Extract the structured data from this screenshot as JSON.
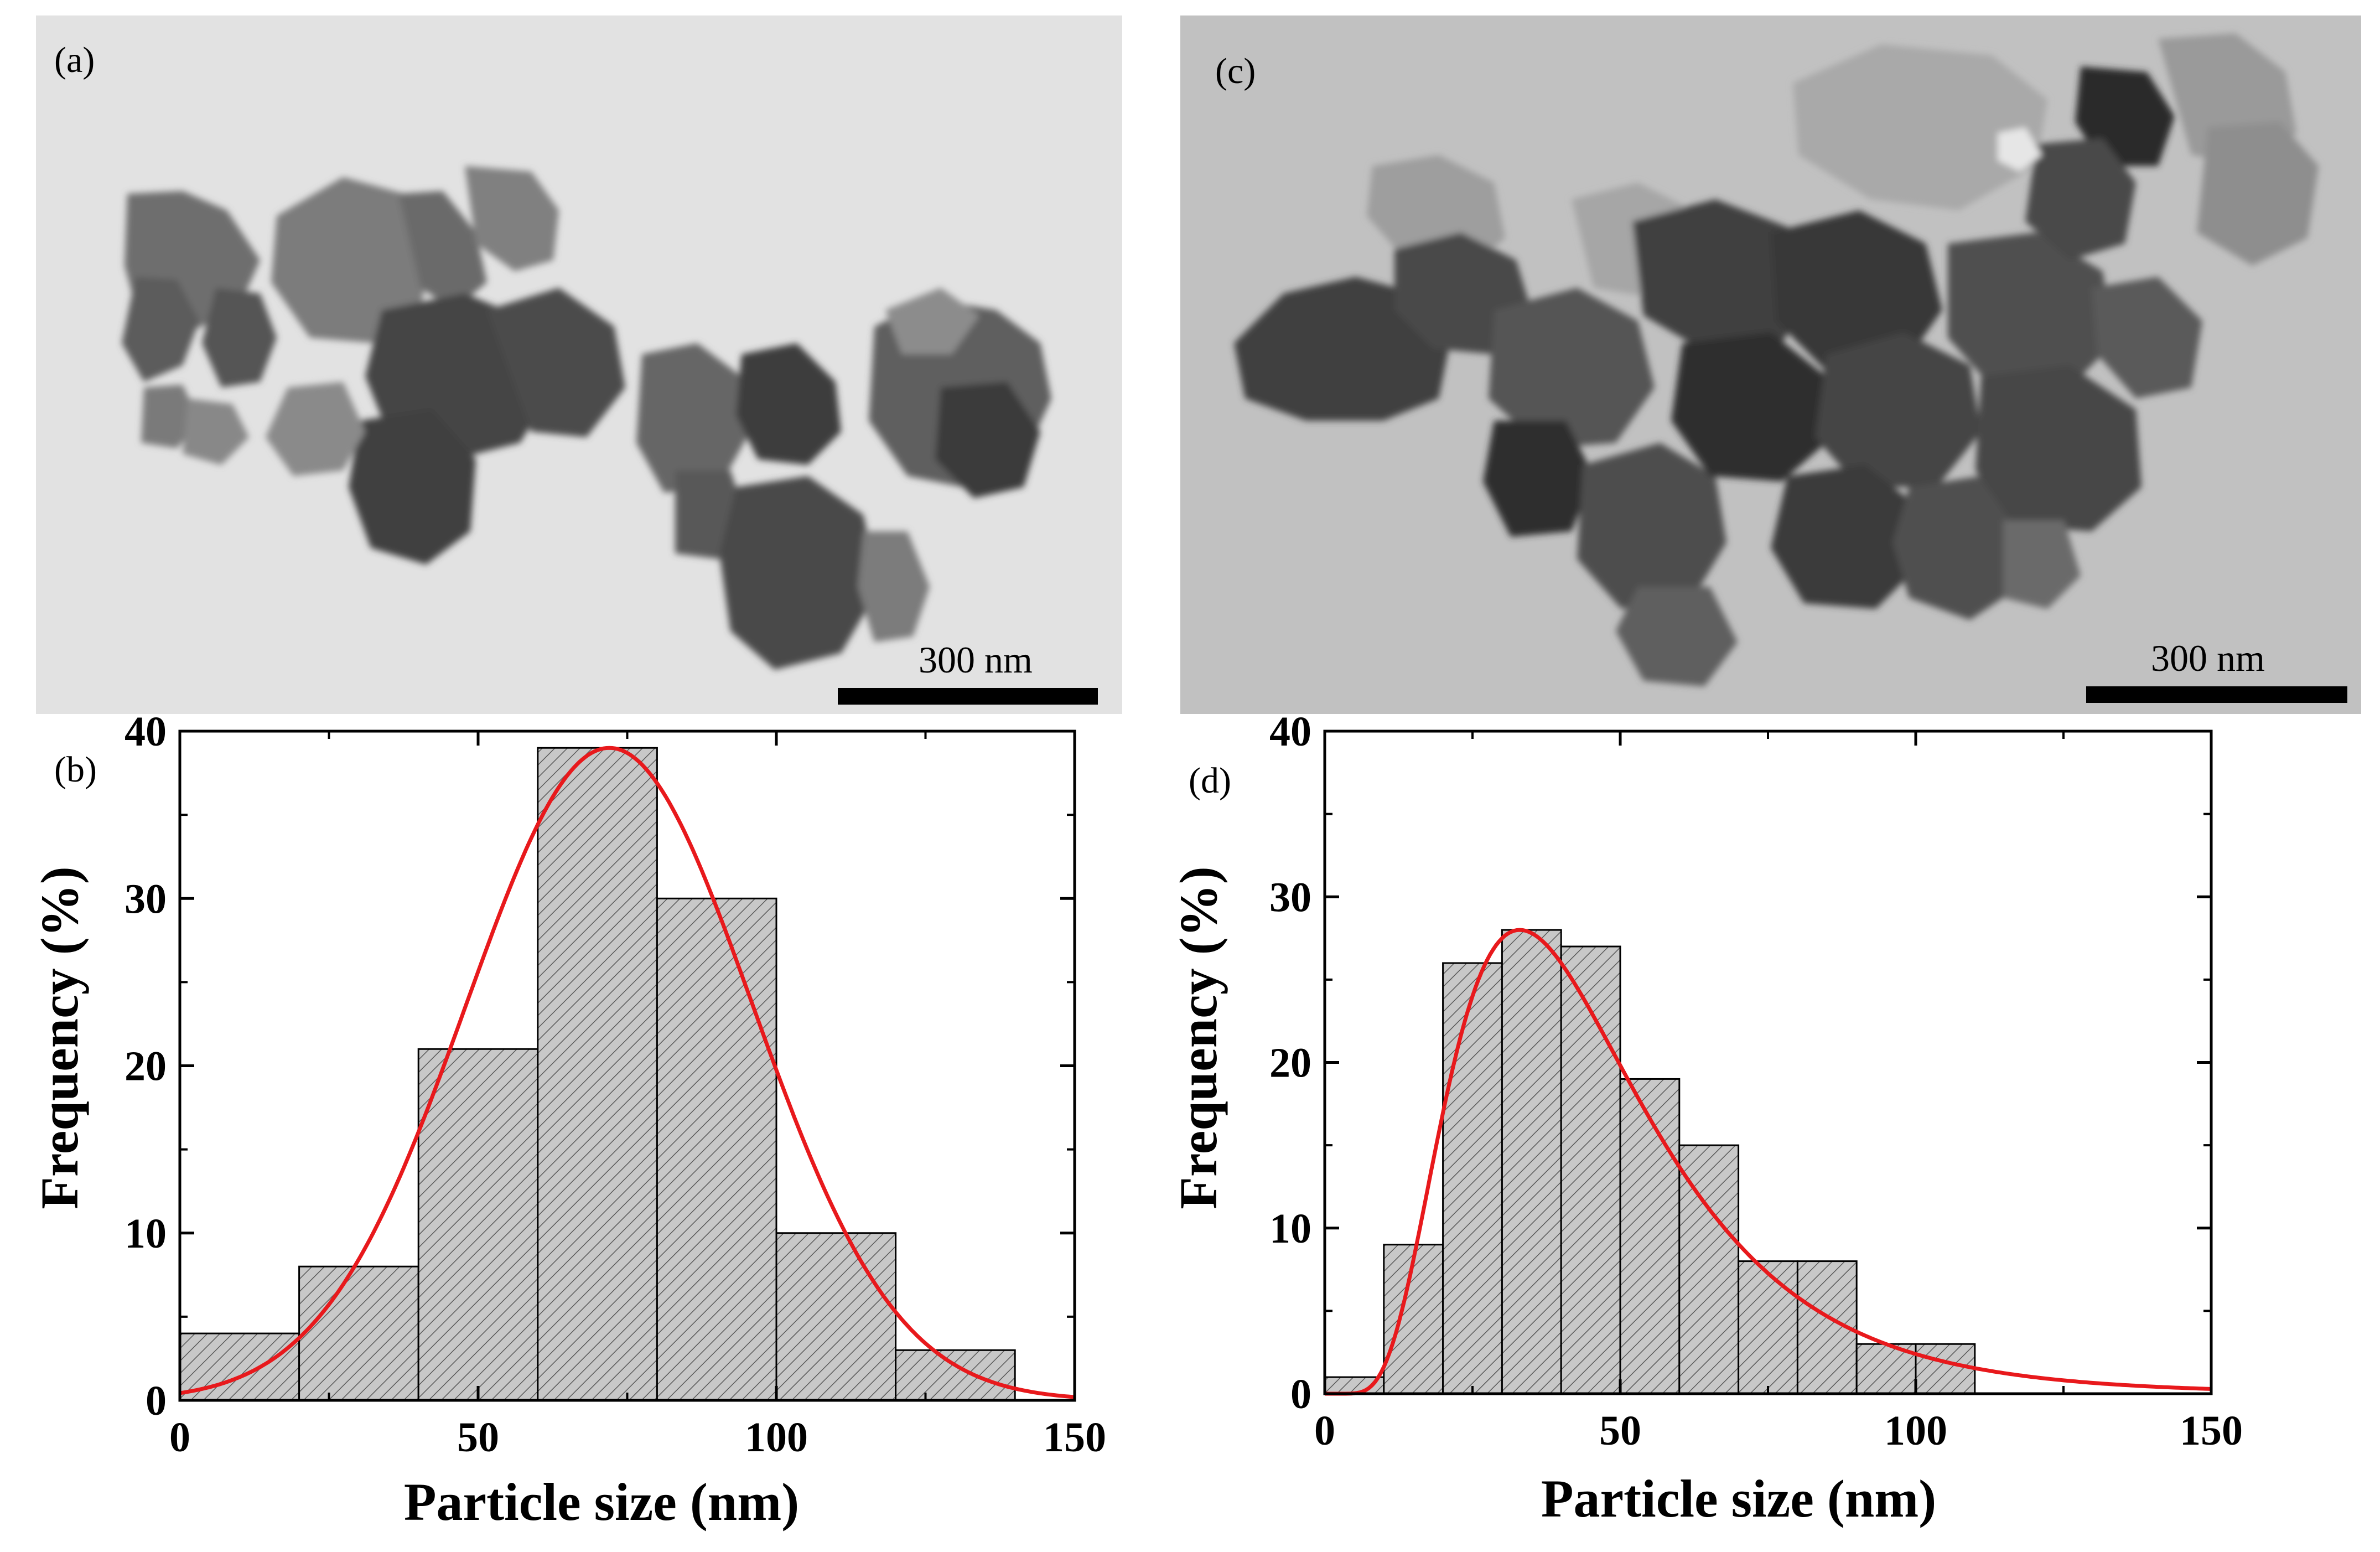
{
  "panels": {
    "a": {
      "label": "(a)",
      "scale_bar": "300 nm"
    },
    "b": {
      "label": "(b)"
    },
    "c": {
      "label": "(c)",
      "scale_bar": "300 nm"
    },
    "d": {
      "label": "(d)"
    }
  },
  "colors": {
    "bar_fill": "#c8c8c8",
    "bar_hatch": "#555555",
    "fit_line": "#e8191c",
    "tem_background_a": "#e3e3e3",
    "tem_background_c": "#c2c2c2"
  },
  "chart_data": [
    {
      "panel": "b",
      "type": "bar",
      "bin_width": 20,
      "bin_starts": [
        0,
        20,
        40,
        60,
        80,
        100,
        120
      ],
      "values": [
        4,
        8,
        21,
        39,
        30,
        10,
        3
      ],
      "fit": {
        "type": "gaussian",
        "peak_x": 72,
        "peak_y": 39
      },
      "xlabel": "Particle size (nm)",
      "ylabel": "Frequency (%)",
      "xlim": [
        0,
        150
      ],
      "ylim": [
        0,
        40
      ],
      "xticks": [
        0,
        50,
        100,
        150
      ],
      "yticks": [
        0,
        10,
        20,
        30,
        40
      ],
      "grid": false
    },
    {
      "panel": "d",
      "type": "bar",
      "bin_width": 10,
      "bin_starts": [
        0,
        10,
        20,
        30,
        40,
        50,
        60,
        70,
        80,
        90,
        100
      ],
      "values": [
        1,
        9,
        26,
        28,
        27,
        19,
        15,
        8,
        8,
        3,
        3
      ],
      "fit": {
        "type": "lognormal",
        "peak_x": 33,
        "peak_y": 28
      },
      "xlabel": "Particle size (nm)",
      "ylabel": "Frequency (%)",
      "xlim": [
        0,
        150
      ],
      "ylim": [
        0,
        40
      ],
      "xticks": [
        0,
        50,
        100,
        150
      ],
      "yticks": [
        0,
        10,
        20,
        30,
        40
      ],
      "grid": false
    }
  ]
}
